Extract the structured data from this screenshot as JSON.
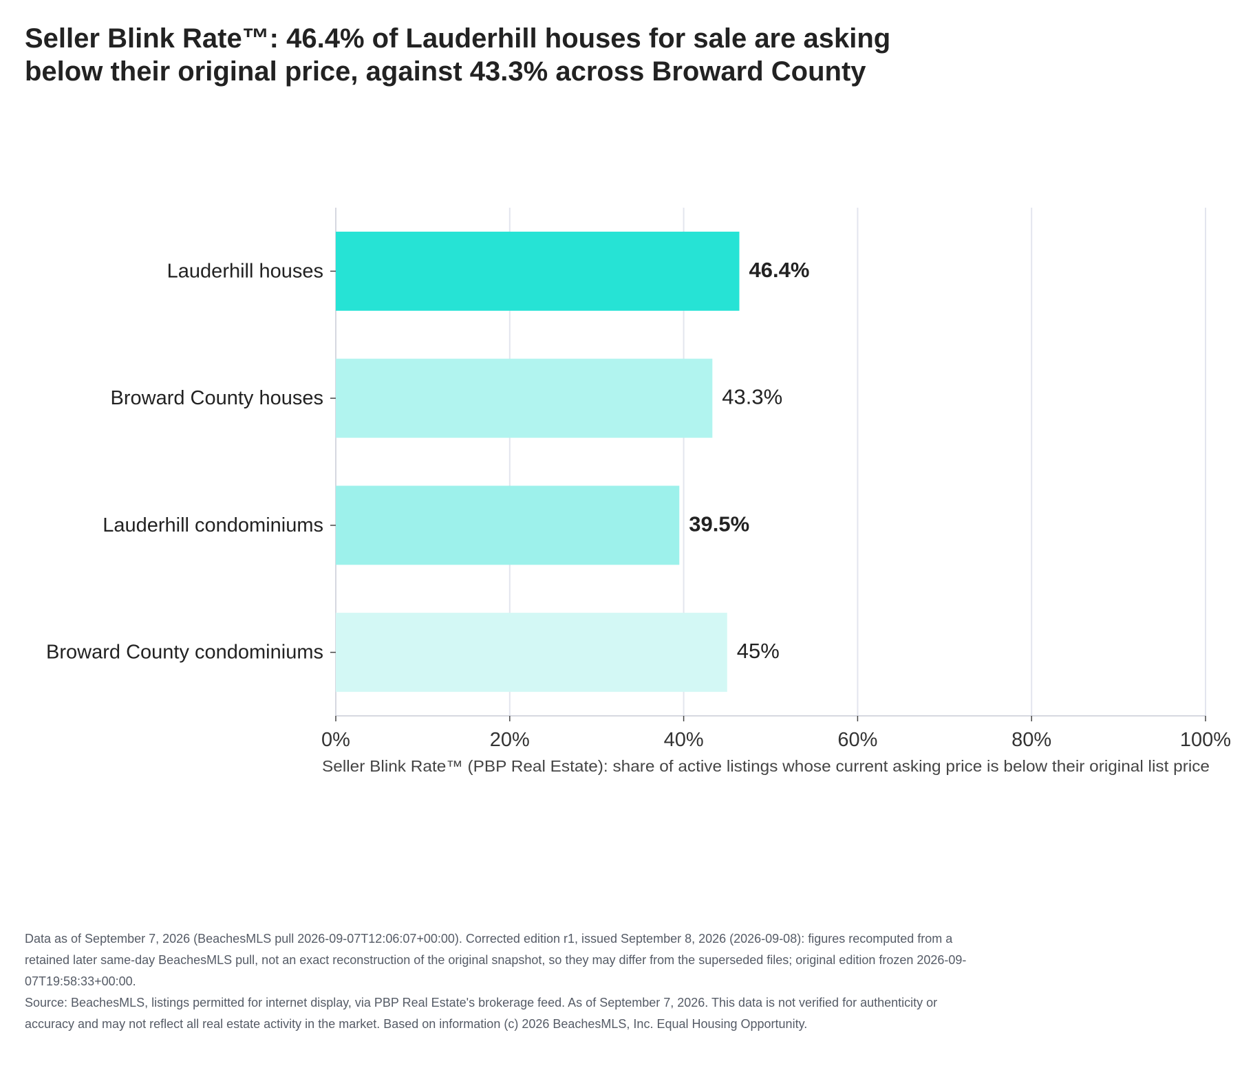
{
  "title_lines": [
    "Seller Blink Rate™: 46.4% of Lauderhill houses for sale are asking",
    "below their original price, against 43.3% across Broward County"
  ],
  "chart_data": {
    "type": "bar",
    "orientation": "horizontal",
    "categories": [
      "Lauderhill houses",
      "Broward County houses",
      "Lauderhill condominiums",
      "Broward County condominiums"
    ],
    "values": [
      46.4,
      43.3,
      39.5,
      45
    ],
    "value_labels": [
      "46.4%",
      "43.3%",
      "39.5%",
      "45%"
    ],
    "value_label_bold": [
      true,
      false,
      true,
      false
    ],
    "bar_colors": [
      "#26e3d5",
      "#b1f4ef",
      "#9df1eb",
      "#d3f8f5"
    ],
    "xlabel": "Seller Blink Rate™ (PBP Real Estate): share of active listings whose current asking price is below their original list price",
    "xlim": [
      0,
      100
    ],
    "xticks": [
      0,
      20,
      40,
      60,
      80,
      100
    ],
    "xtick_labels": [
      "0%",
      "20%",
      "40%",
      "60%",
      "80%",
      "100%"
    ],
    "grid": true,
    "legend": "none"
  },
  "footer": {
    "data_note": "Data as of September 7, 2026 (BeachesMLS pull 2026-09-07T12:06:07+00:00). Corrected edition r1, issued September 8, 2026 (2026-09-08): figures recomputed from a retained later same-day BeachesMLS pull, not an exact reconstruction of the original snapshot, so they may differ from the superseded files; original edition frozen 2026-09-07T19:58:33+00:00.",
    "source_note": "Source: BeachesMLS, listings permitted for internet display, via PBP Real Estate's brokerage feed. As of September 7, 2026. This data is not verified for authenticity or accuracy and may not reflect all real estate activity in the market. Based on information (c) 2026 BeachesMLS, Inc. Equal Housing Opportunity."
  },
  "colors": {
    "text": "#222222",
    "grid": "#e3e5ee",
    "axis": "#d6d8e0",
    "footer_text": "#555b66"
  }
}
